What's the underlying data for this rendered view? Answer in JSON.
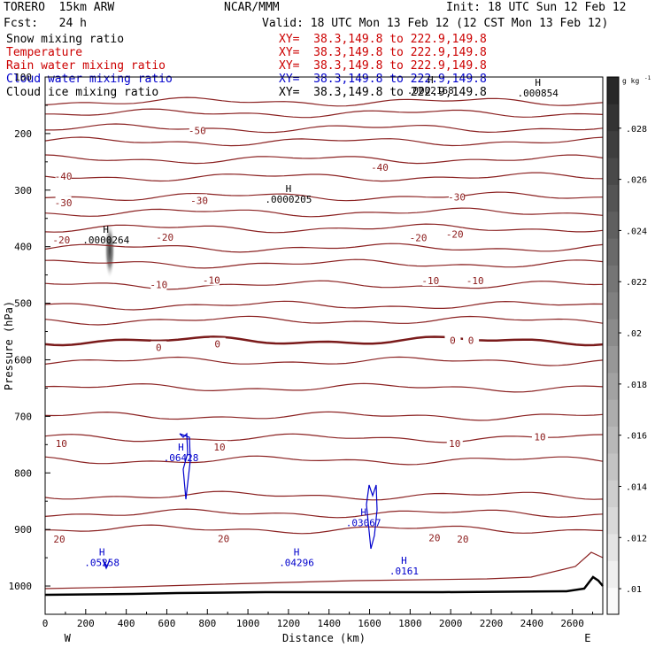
{
  "header": {
    "model": "TORERO  15km ARW",
    "org": "NCAR/MMM",
    "init": "Init: 18 UTC Sun 12 Feb 12",
    "fcst": "Fcst:   24 h",
    "valid": "Valid: 18 UTC Mon 13 Feb 12 (12 CST Mon 13 Feb 12)"
  },
  "fields": [
    {
      "name": "Snow mixing ratio",
      "xy": "XY=  38.3,149.8 to 222.9,149.8",
      "color": "#000000"
    },
    {
      "name": "Temperature",
      "xy": "XY=  38.3,149.8 to 222.9,149.8",
      "color": "#cc0000"
    },
    {
      "name": "Rain water mixing ratio",
      "xy": "XY=  38.3,149.8 to 222.9,149.8",
      "color": "#cc0000"
    },
    {
      "name": "Cloud water mixing ratio",
      "xy": "XY=  38.3,149.8 to 222.9,149.8",
      "color": "#0000cc"
    },
    {
      "name": "Cloud ice mixing ratio",
      "xy": "XY=  38.3,149.8 to 222.9,149.8",
      "color": "#000000"
    }
  ],
  "chart_data": {
    "type": "cross-section contour",
    "xlabel": "Distance (km)",
    "ylabel": "Pressure (hPa)",
    "xlim": [
      0,
      2750
    ],
    "ylim": [
      1050,
      100
    ],
    "xticks": [
      0,
      200,
      400,
      600,
      800,
      1000,
      1200,
      1400,
      1600,
      1800,
      2000,
      2200,
      2400,
      2600
    ],
    "yticks": [
      100,
      200,
      300,
      400,
      500,
      600,
      700,
      800,
      900,
      1000
    ],
    "ends": {
      "left": "W",
      "right": "E"
    },
    "colorbar": {
      "unit": "g kg",
      "unit_exp": "-1",
      "ticks": [
        ".01",
        ".012",
        ".014",
        ".016",
        ".018",
        ".02",
        ".022",
        ".024",
        ".026",
        ".028"
      ],
      "min": 0.009,
      "max": 0.03
    },
    "temperature_labels": [
      {
        "value": "-50",
        "x": 750,
        "p": 195
      },
      {
        "value": "-40",
        "x": 90,
        "p": 275
      },
      {
        "value": "-40",
        "x": 1650,
        "p": 260
      },
      {
        "value": "-30",
        "x": 90,
        "p": 322
      },
      {
        "value": "-30",
        "x": 760,
        "p": 318
      },
      {
        "value": "-30",
        "x": 2030,
        "p": 312
      },
      {
        "value": "-20",
        "x": 80,
        "p": 388
      },
      {
        "value": "-20",
        "x": 590,
        "p": 383
      },
      {
        "value": "-20",
        "x": 1840,
        "p": 384
      },
      {
        "value": "-20",
        "x": 2020,
        "p": 378
      },
      {
        "value": "-10",
        "x": 560,
        "p": 467
      },
      {
        "value": "-10",
        "x": 820,
        "p": 459
      },
      {
        "value": "-10",
        "x": 1900,
        "p": 460
      },
      {
        "value": "-10",
        "x": 2120,
        "p": 460
      },
      {
        "value": "0",
        "x": 560,
        "p": 578
      },
      {
        "value": "0",
        "x": 850,
        "p": 572
      },
      {
        "value": "0",
        "x": 2010,
        "p": 566
      },
      {
        "value": "0",
        "x": 2100,
        "p": 566
      },
      {
        "value": "10",
        "x": 80,
        "p": 748
      },
      {
        "value": "10",
        "x": 860,
        "p": 754
      },
      {
        "value": "10",
        "x": 2020,
        "p": 748
      },
      {
        "value": "10",
        "x": 2440,
        "p": 736
      },
      {
        "value": "20",
        "x": 70,
        "p": 917
      },
      {
        "value": "20",
        "x": 880,
        "p": 916
      },
      {
        "value": "20",
        "x": 1920,
        "p": 915
      },
      {
        "value": "20",
        "x": 2060,
        "p": 917
      }
    ],
    "maxima": [
      {
        "label": "H",
        "value": ".0000264",
        "x": 300,
        "p": 385,
        "color": "#000000"
      },
      {
        "label": "H",
        "value": ".0000205",
        "x": 1200,
        "p": 313,
        "color": "#000000"
      },
      {
        "label": "H",
        "value": ".0002168",
        "x": 1900,
        "p": 120,
        "color": "#000000"
      },
      {
        "label": "H",
        "value": ".000854",
        "x": 2430,
        "p": 125,
        "color": "#000000"
      },
      {
        "label": "H",
        "value": ".06428",
        "x": 670,
        "p": 770,
        "color": "#0000cc"
      },
      {
        "label": "H",
        "value": ".03067",
        "x": 1570,
        "p": 885,
        "color": "#0000cc"
      },
      {
        "label": "H",
        "value": ".05258",
        "x": 280,
        "p": 955,
        "color": "#0000cc"
      },
      {
        "label": "H",
        "value": ".04296",
        "x": 1240,
        "p": 955,
        "color": "#0000cc"
      },
      {
        "label": "H",
        "value": ".0161",
        "x": 1770,
        "p": 970,
        "color": "#0000cc"
      }
    ]
  }
}
